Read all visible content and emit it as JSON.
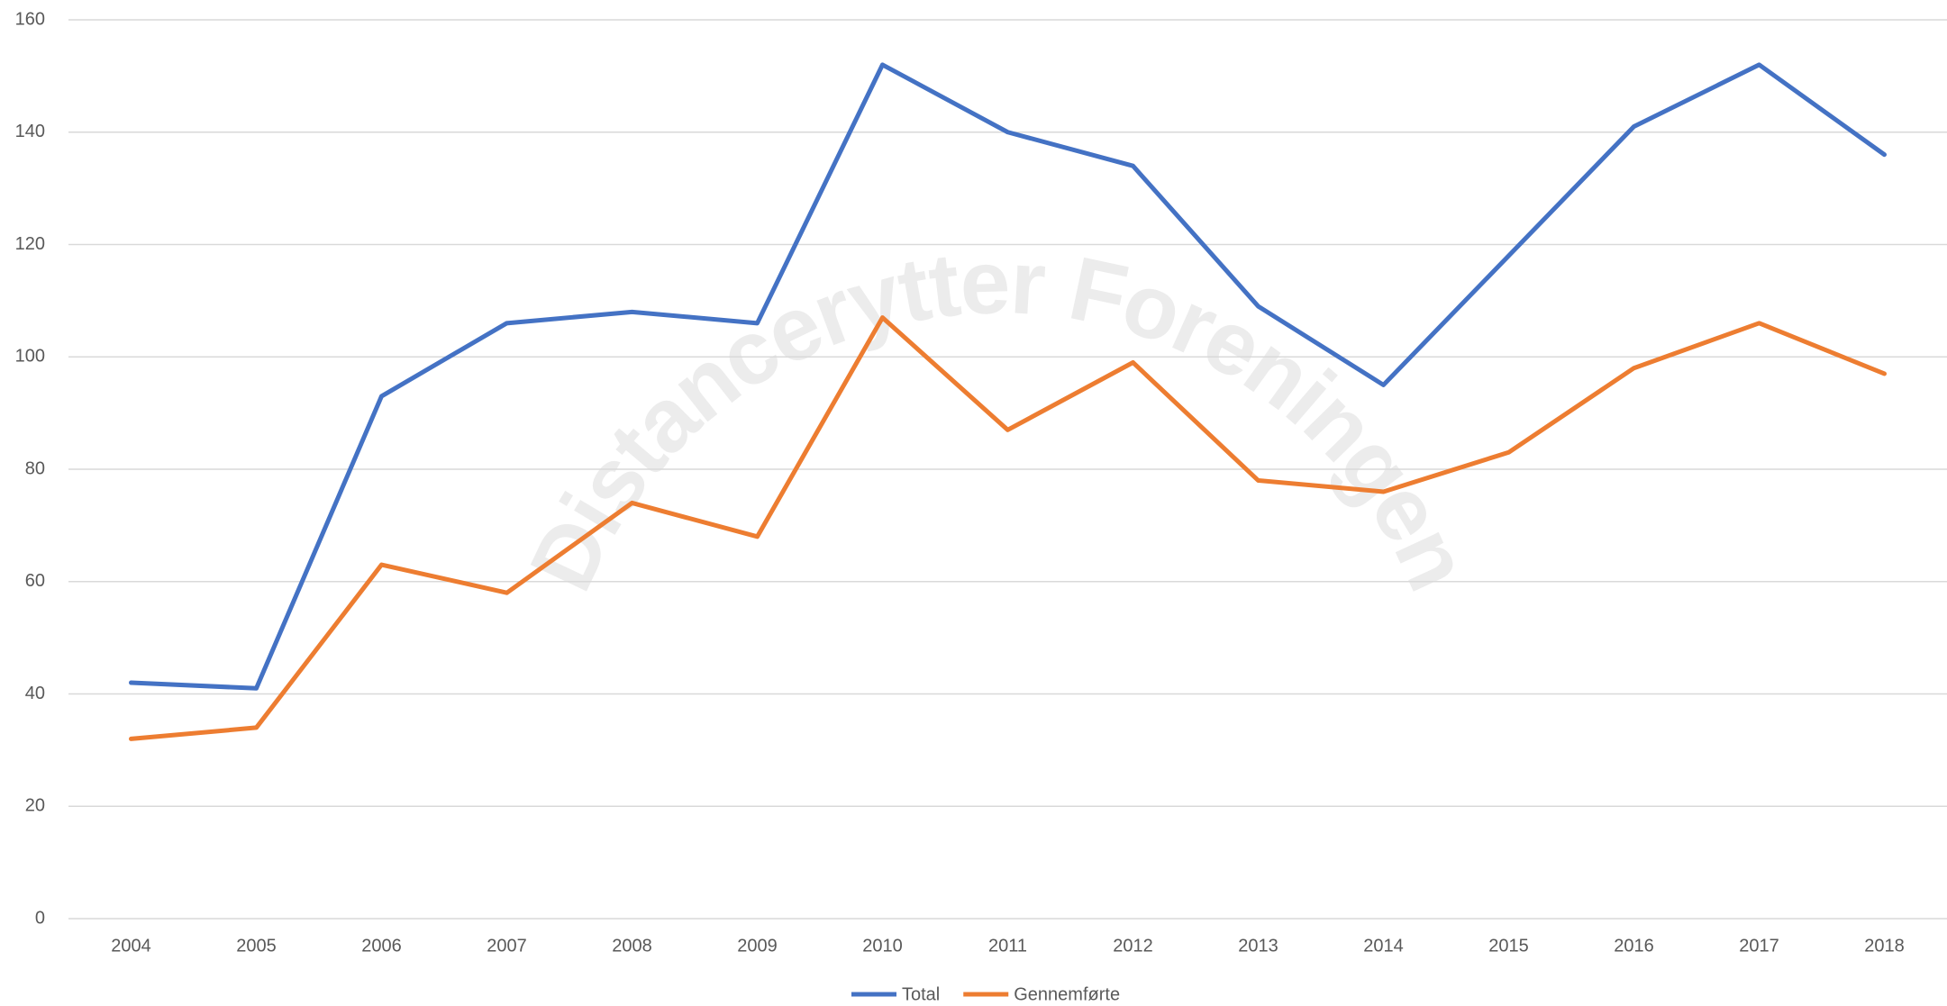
{
  "chart_data": {
    "type": "line",
    "watermark": "Distancerytter Foreningen",
    "categories": [
      "2004",
      "2005",
      "2006",
      "2007",
      "2008",
      "2009",
      "2010",
      "2011",
      "2012",
      "2013",
      "2014",
      "2015",
      "2016",
      "2017",
      "2018"
    ],
    "series": [
      {
        "name": "Total",
        "color": "#4472c4",
        "values": [
          42,
          41,
          93,
          106,
          108,
          106,
          152,
          140,
          134,
          109,
          95,
          118,
          141,
          152,
          136
        ]
      },
      {
        "name": "Gennemførte",
        "color": "#ed7d31",
        "values": [
          32,
          34,
          63,
          58,
          74,
          68,
          107,
          87,
          99,
          78,
          76,
          83,
          98,
          106,
          97
        ]
      }
    ],
    "ylim": [
      0,
      160
    ],
    "yticks": [
      0,
      20,
      40,
      60,
      80,
      100,
      120,
      140,
      160
    ],
    "grid": true,
    "legend": "bottom"
  }
}
